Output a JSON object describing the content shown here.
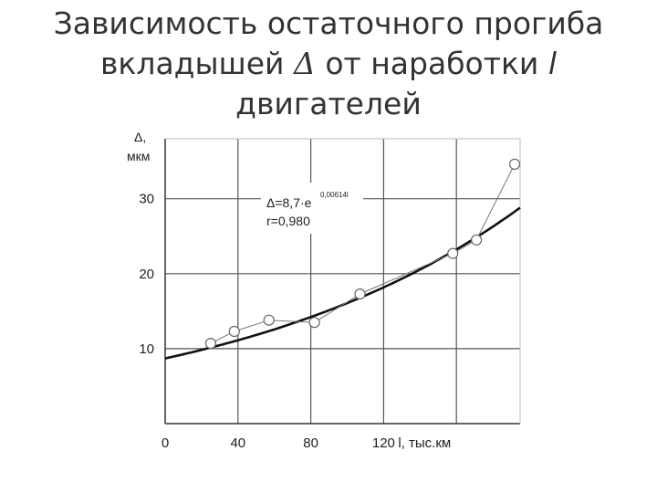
{
  "title": {
    "line1": "Зависимость остаточного прогиба",
    "line2_prefix": "вкладышей ",
    "line2_symbol": "Δ",
    "line2_middle": " от наработки ",
    "line2_var": "l",
    "line3": "двигателей"
  },
  "chart_data": {
    "type": "scatter",
    "ylabel_line1": "Δ,",
    "ylabel_line2": "мкм",
    "xlabel": "l, тыс.км",
    "xlim": [
      0,
      195
    ],
    "ylim": [
      0,
      38
    ],
    "x_ticks": [
      0,
      40,
      80,
      120
    ],
    "y_ticks": [
      10,
      20,
      30
    ],
    "grid": true,
    "annotation": {
      "formula": "Δ=8,7·e",
      "exponent": "0,00614l",
      "r": "r=0,980"
    },
    "series": [
      {
        "type": "scatter_line",
        "x": [
          25,
          38,
          57,
          82,
          107,
          158,
          171,
          192
        ],
        "y": [
          10.7,
          12.3,
          13.8,
          13.5,
          17.3,
          22.7,
          24.5,
          34.6
        ]
      },
      {
        "type": "fit_curve",
        "coef_a": 8.7,
        "coef_b": 0.00614,
        "x_range": [
          0,
          195
        ]
      }
    ]
  }
}
